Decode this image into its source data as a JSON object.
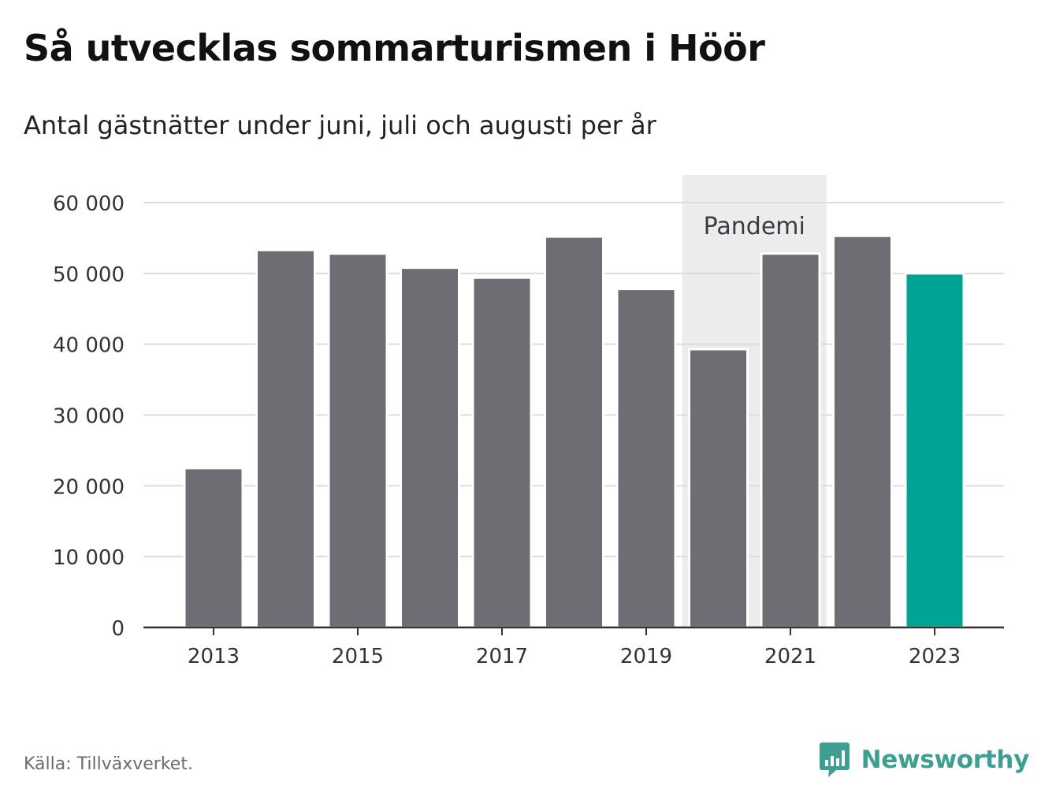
{
  "header": {
    "title": "Så utvecklas sommarturismen i Höör",
    "subtitle": "Antal gästnätter under juni, juli och augusti per år"
  },
  "footer": {
    "source": "Källa: Tillväxverket.",
    "brand": "Newsworthy"
  },
  "colors": {
    "bar": "#6e6d74",
    "highlight": "#00a396",
    "band": "#ececec",
    "grid": "#dcdcdc",
    "axis": "#333333",
    "brand": "#3f9e94"
  },
  "chart_data": {
    "type": "bar",
    "title": "Så utvecklas sommarturismen i Höör",
    "subtitle": "Antal gästnätter under juni, juli och augusti per år",
    "categories": [
      "2013",
      "2014",
      "2015",
      "2016",
      "2017",
      "2018",
      "2019",
      "2020",
      "2021",
      "2022",
      "2023"
    ],
    "values": [
      22500,
      53300,
      52800,
      50800,
      49400,
      55200,
      47800,
      39300,
      52800,
      55300,
      50000
    ],
    "highlight_index": 10,
    "x_tick_labels": [
      "2013",
      "2015",
      "2017",
      "2019",
      "2021",
      "2023"
    ],
    "y_ticks": [
      0,
      10000,
      20000,
      30000,
      40000,
      50000,
      60000
    ],
    "y_tick_labels": [
      "0",
      "10 000",
      "20 000",
      "30 000",
      "40 000",
      "50 000",
      "60 000"
    ],
    "ylim": [
      0,
      60000
    ],
    "grid": true,
    "annotation": {
      "label": "Pandemi",
      "from": "2020",
      "to": "2021"
    }
  }
}
